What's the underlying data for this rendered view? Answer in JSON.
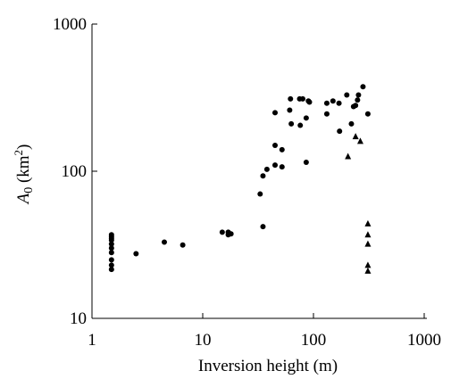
{
  "chart_data": {
    "type": "scatter",
    "xlabel": "Inversion height (m)",
    "ylabel": [
      "A",
      "0",
      " (km",
      "2",
      ")"
    ],
    "xscale": "log",
    "yscale": "log",
    "xlim": [
      1,
      1000
    ],
    "ylim": [
      10,
      1000
    ],
    "xticks": [
      1,
      10,
      100,
      1000
    ],
    "yticks": [
      10,
      100,
      1000
    ],
    "series": [
      {
        "marker": "circle",
        "color": "#000000",
        "x": [
          1.5,
          1.5,
          1.5,
          1.5,
          1.5,
          1.5,
          1.5,
          1.5,
          1.5,
          1.5,
          2.5,
          4.5,
          6.6,
          15,
          17,
          17,
          18,
          33,
          35,
          35,
          38,
          45,
          45,
          45,
          52,
          52,
          61,
          62,
          63,
          75,
          76,
          80,
          86,
          86,
          90,
          92,
          132,
          132,
          150,
          170,
          172,
          200,
          220,
          230,
          240,
          250,
          255,
          280,
          310
        ],
        "values": [
          21.5,
          23,
          25,
          28,
          30,
          32,
          34,
          35,
          36,
          37,
          27.5,
          33,
          31.5,
          38.5,
          37,
          38.5,
          37.5,
          70,
          42,
          93,
          103,
          110,
          150,
          250,
          107,
          140,
          260,
          310,
          210,
          310,
          205,
          310,
          230,
          115,
          300,
          295,
          245,
          290,
          300,
          290,
          187,
          330,
          210,
          275,
          280,
          305,
          330,
          375,
          245
        ]
      },
      {
        "marker": "triangle",
        "color": "#000000",
        "x": [
          205,
          240,
          265,
          310,
          310,
          310,
          310,
          310
        ],
        "values": [
          126,
          172,
          160,
          44,
          37,
          32,
          23,
          21
        ]
      }
    ]
  }
}
